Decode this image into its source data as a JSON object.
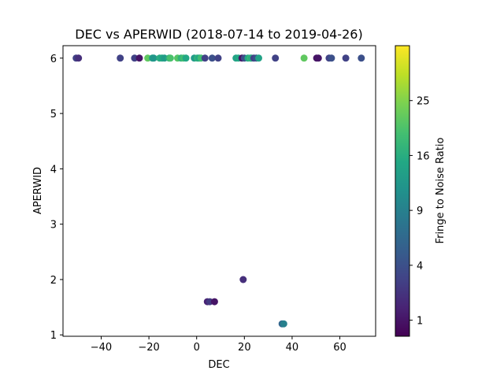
{
  "chart_data": {
    "type": "scatter",
    "title": "DEC vs APERWID (2018-07-14 to 2019-04-26)",
    "xlabel": "DEC",
    "ylabel": "APERWID",
    "xlim": [
      -56,
      75
    ],
    "ylim": [
      0.975,
      6.225
    ],
    "xticks": [
      -40,
      -20,
      0,
      20,
      40,
      60
    ],
    "xtick_labels": [
      "−40",
      "−20",
      "0",
      "20",
      "40",
      "60"
    ],
    "yticks": [
      1,
      2,
      3,
      4,
      5,
      6
    ],
    "ytick_labels": [
      "1",
      "2",
      "3",
      "4",
      "5",
      "6"
    ],
    "grid": false,
    "colorbar": {
      "label": "Fringe to Noise Ratio",
      "colormap": "viridis",
      "scale": "sqrt",
      "range": [
        0.5,
        36
      ],
      "ticks": [
        1,
        4,
        9,
        16,
        25
      ],
      "tick_labels": [
        "1",
        "4",
        "9",
        "16",
        "25"
      ]
    },
    "points": [
      {
        "x": -50.5,
        "y": 6,
        "c": 3
      },
      {
        "x": -49.5,
        "y": 6,
        "c": 2
      },
      {
        "x": -32,
        "y": 6,
        "c": 3
      },
      {
        "x": -26,
        "y": 6,
        "c": 3
      },
      {
        "x": -24,
        "y": 6,
        "c": 1
      },
      {
        "x": -20.5,
        "y": 6,
        "c": 22
      },
      {
        "x": -18.5,
        "y": 6,
        "c": 14
      },
      {
        "x": -18,
        "y": 6,
        "c": 12
      },
      {
        "x": -15.5,
        "y": 6,
        "c": 16
      },
      {
        "x": -14.5,
        "y": 6,
        "c": 15
      },
      {
        "x": -13.5,
        "y": 6,
        "c": 13
      },
      {
        "x": -11.5,
        "y": 6,
        "c": 17
      },
      {
        "x": -11,
        "y": 6,
        "c": 20
      },
      {
        "x": -8,
        "y": 6,
        "c": 21
      },
      {
        "x": -6.5,
        "y": 6,
        "c": 17
      },
      {
        "x": -5.5,
        "y": 6,
        "c": 19
      },
      {
        "x": -4.5,
        "y": 6,
        "c": 15
      },
      {
        "x": -1,
        "y": 6,
        "c": 13
      },
      {
        "x": 0.3,
        "y": 6,
        "c": 17
      },
      {
        "x": 1,
        "y": 6,
        "c": 15
      },
      {
        "x": 1.8,
        "y": 6,
        "c": 19
      },
      {
        "x": 3.5,
        "y": 6,
        "c": 3
      },
      {
        "x": 6.5,
        "y": 6,
        "c": 4
      },
      {
        "x": 9,
        "y": 6,
        "c": 3
      },
      {
        "x": 16.5,
        "y": 6,
        "c": 14
      },
      {
        "x": 17.5,
        "y": 6,
        "c": 15
      },
      {
        "x": 19,
        "y": 6,
        "c": 1
      },
      {
        "x": 20,
        "y": 6,
        "c": 4
      },
      {
        "x": 21.5,
        "y": 6,
        "c": 15
      },
      {
        "x": 22.5,
        "y": 6,
        "c": 18
      },
      {
        "x": 23,
        "y": 6,
        "c": 16
      },
      {
        "x": 24,
        "y": 6,
        "c": 3
      },
      {
        "x": 25,
        "y": 6,
        "c": 4
      },
      {
        "x": 26,
        "y": 6,
        "c": 14
      },
      {
        "x": 33,
        "y": 6,
        "c": 3
      },
      {
        "x": 45,
        "y": 6,
        "c": 22
      },
      {
        "x": 50.3,
        "y": 6,
        "c": 1
      },
      {
        "x": 51,
        "y": 6,
        "c": 1
      },
      {
        "x": 55.5,
        "y": 6,
        "c": 3
      },
      {
        "x": 56.5,
        "y": 6,
        "c": 4
      },
      {
        "x": 62.5,
        "y": 6,
        "c": 3
      },
      {
        "x": 69,
        "y": 6,
        "c": 4
      },
      {
        "x": 19.5,
        "y": 2,
        "c": 2
      },
      {
        "x": 4.5,
        "y": 1.6,
        "c": 1.5
      },
      {
        "x": 5.5,
        "y": 1.6,
        "c": 2.5
      },
      {
        "x": 7.5,
        "y": 1.6,
        "c": 1
      },
      {
        "x": 35.8,
        "y": 1.2,
        "c": 6
      },
      {
        "x": 36.5,
        "y": 1.2,
        "c": 9
      }
    ]
  }
}
